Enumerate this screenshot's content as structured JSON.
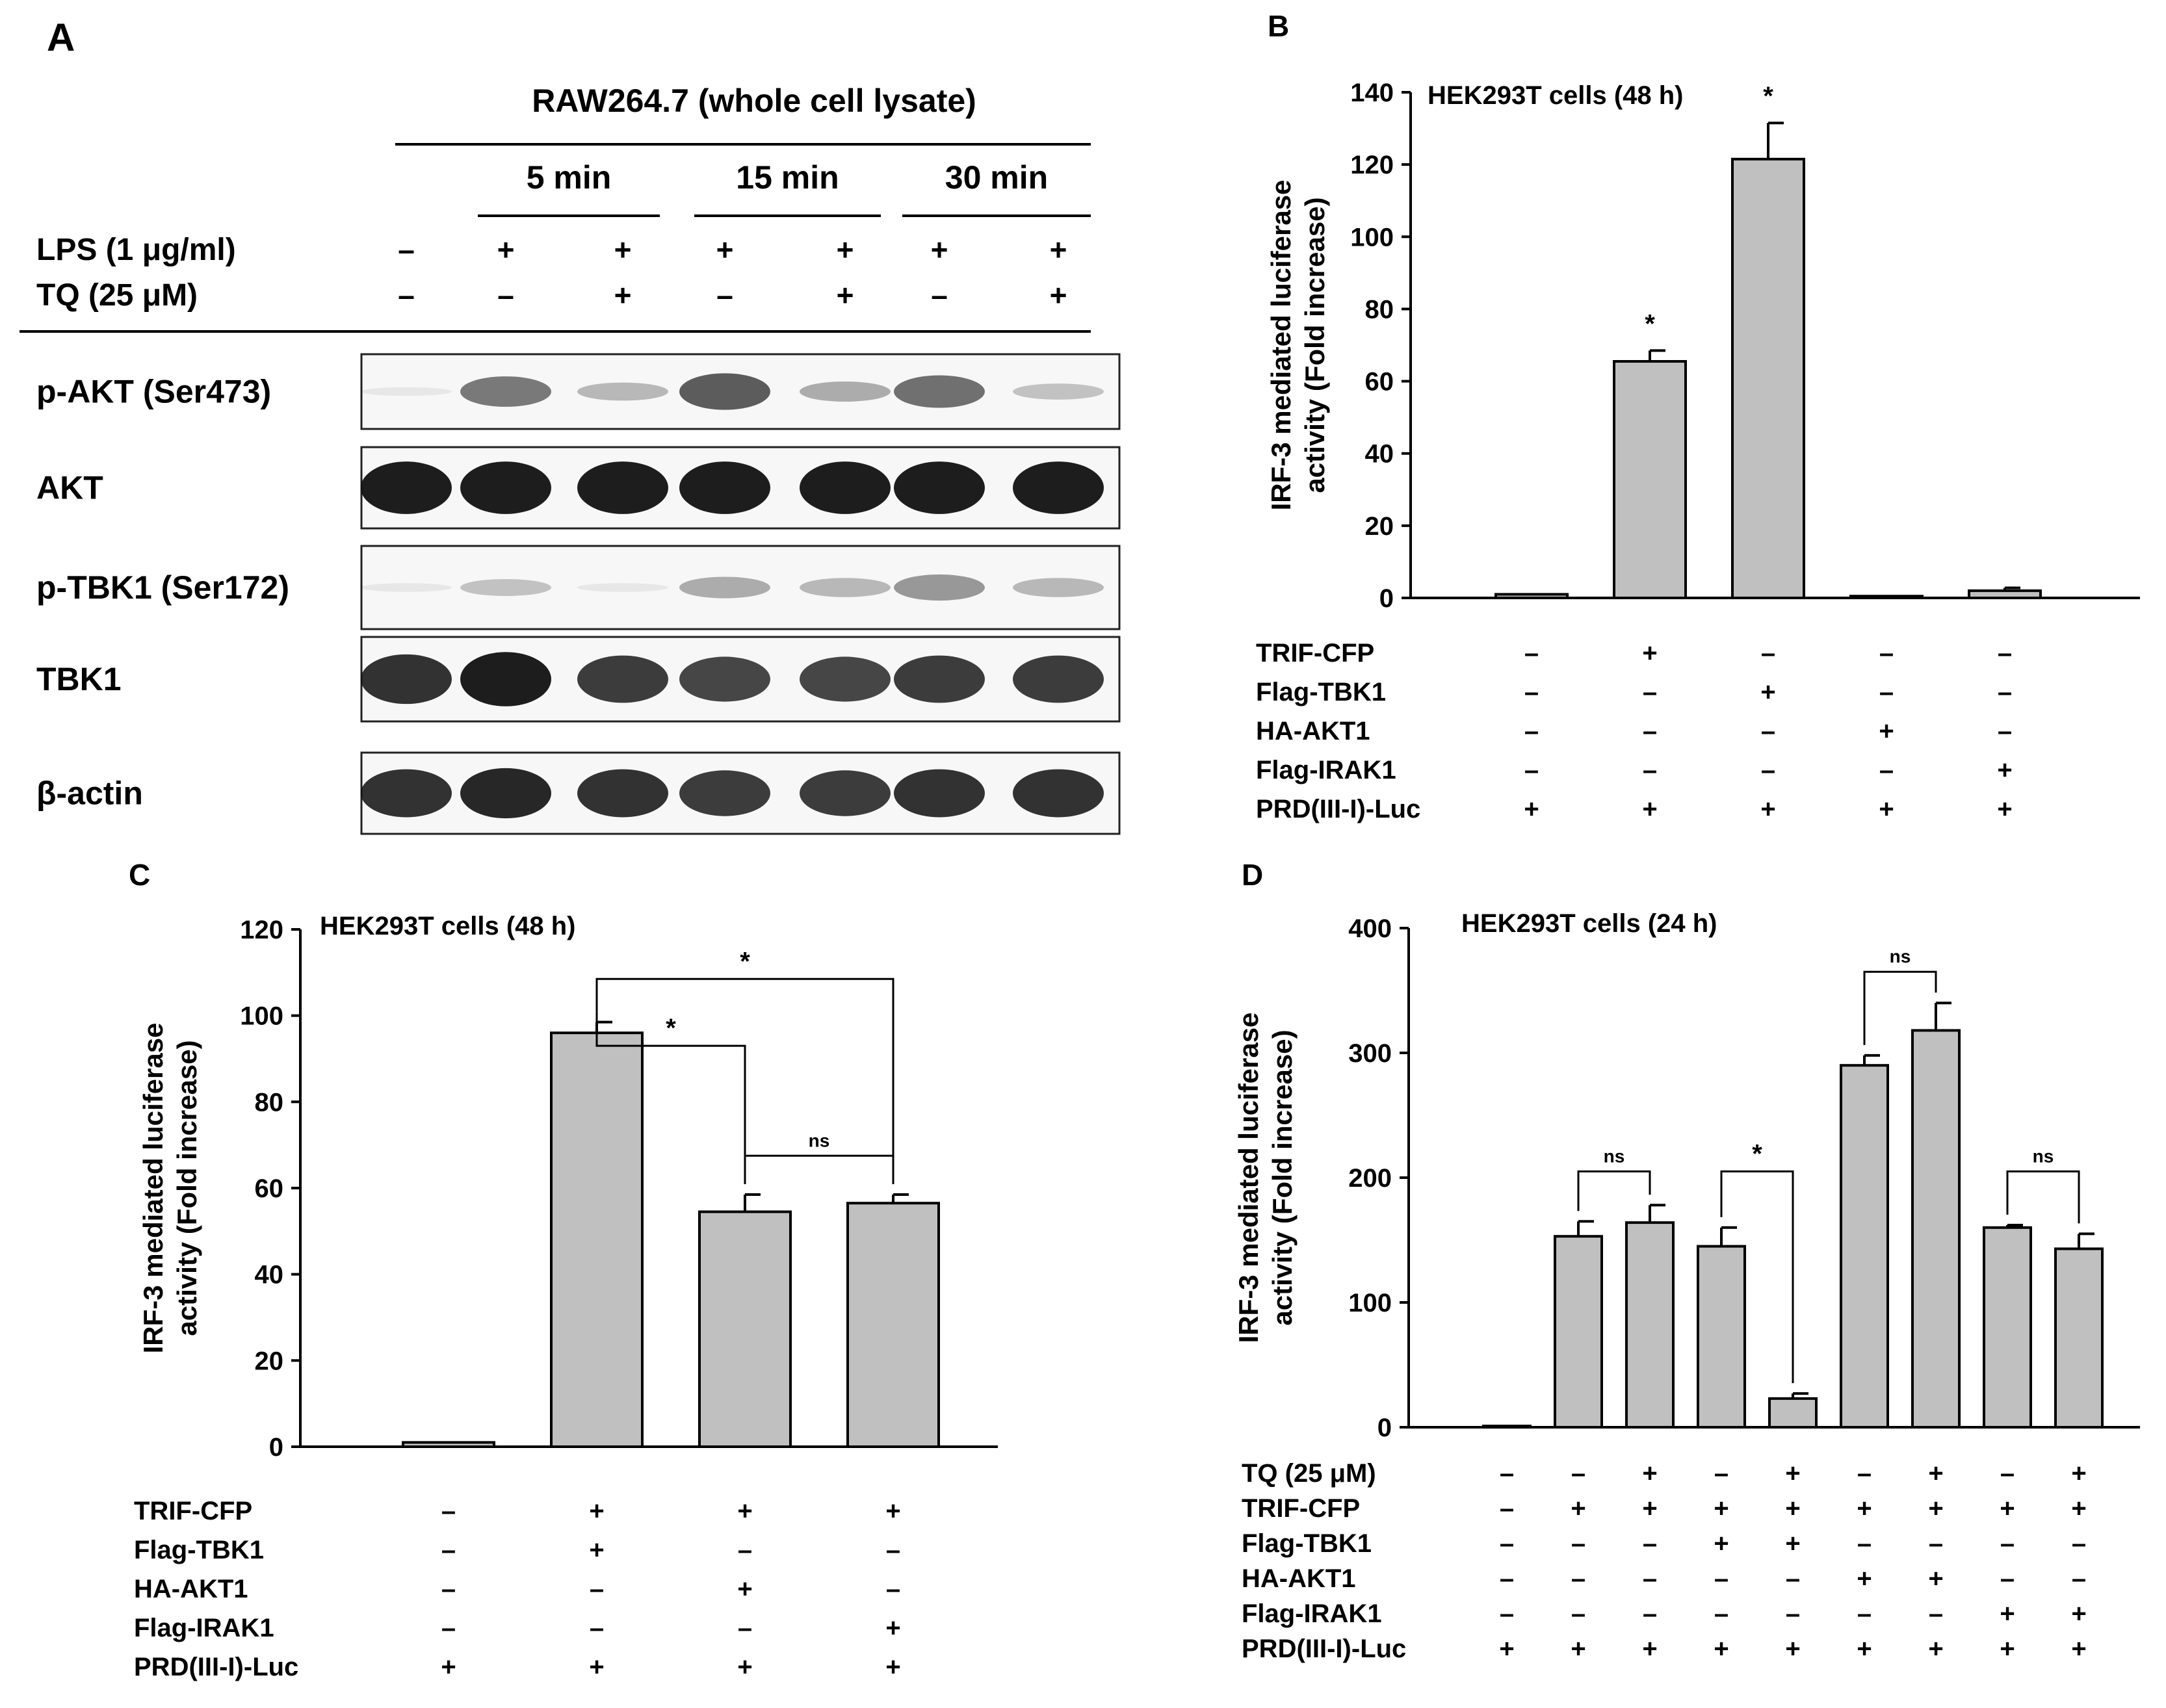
{
  "panel_labels": {
    "A": "A",
    "B": "B",
    "C": "C",
    "D": "D"
  },
  "colors": {
    "bar_fill": "#c0c0c0",
    "axis": "#000000",
    "band": "#111111",
    "blot_bg": "#f7f7f7"
  },
  "western_blot": {
    "title": "RAW264.7 (whole cell lysate)",
    "time_groups": [
      "5 min",
      "15 min",
      "30 min"
    ],
    "treatment_rows": [
      {
        "label": "LPS (1 μg/ml)",
        "signs": [
          "–",
          "+",
          "+",
          "+",
          "+",
          "+",
          "+"
        ]
      },
      {
        "label": "TQ (25 μM)",
        "signs": [
          "–",
          "–",
          "+",
          "–",
          "+",
          "–",
          "+"
        ]
      }
    ],
    "blots": [
      {
        "label": "p-AKT (Ser473)",
        "intensity": [
          0.02,
          0.55,
          0.25,
          0.7,
          0.3,
          0.6,
          0.2
        ]
      },
      {
        "label": "AKT",
        "intensity": [
          1,
          1,
          1,
          1,
          1,
          1,
          1
        ]
      },
      {
        "label": "p-TBK1 (Ser172)",
        "intensity": [
          0.02,
          0.2,
          0.02,
          0.3,
          0.25,
          0.4,
          0.25
        ]
      },
      {
        "label": "TBK1",
        "intensity": [
          0.9,
          1,
          0.85,
          0.8,
          0.8,
          0.85,
          0.85
        ]
      },
      {
        "label": "β-actin",
        "intensity": [
          0.9,
          0.95,
          0.9,
          0.85,
          0.85,
          0.9,
          0.9
        ]
      }
    ]
  },
  "chart_data": [
    {
      "panel": "B",
      "type": "bar",
      "title": "HEK293T cells  (48 h)",
      "ylabel_lines": [
        "IRF-3 mediated luciferase",
        "activity (Fold increase)"
      ],
      "ylim": [
        0,
        140
      ],
      "yticks": [
        0,
        20,
        40,
        60,
        80,
        100,
        120,
        140
      ],
      "values": [
        1,
        65.5,
        121.5,
        0.5,
        2
      ],
      "errors": [
        0,
        3,
        10,
        0,
        0.8
      ],
      "significance": [
        "",
        "*",
        "*",
        "",
        ""
      ],
      "treatment_rows": [
        {
          "label": "TRIF-CFP",
          "signs": [
            "–",
            "+",
            "–",
            "–",
            "–"
          ]
        },
        {
          "label": "Flag-TBK1",
          "signs": [
            "–",
            "–",
            "+",
            "–",
            "–"
          ]
        },
        {
          "label": "HA-AKT1",
          "signs": [
            "–",
            "–",
            "–",
            "+",
            "–"
          ]
        },
        {
          "label": "Flag-IRAK1",
          "signs": [
            "–",
            "–",
            "–",
            "–",
            "+"
          ]
        },
        {
          "label": "PRD(III-I)-Luc",
          "signs": [
            "+",
            "+",
            "+",
            "+",
            "+"
          ]
        }
      ]
    },
    {
      "panel": "C",
      "type": "bar",
      "title": "HEK293T cells  (48 h)",
      "ylabel_lines": [
        "IRF-3 mediated luciferase",
        "activity (Fold increase)"
      ],
      "ylim": [
        0,
        120
      ],
      "yticks": [
        0,
        20,
        40,
        60,
        80,
        100,
        120
      ],
      "values": [
        1,
        96,
        54.5,
        56.5
      ],
      "errors": [
        0,
        2.5,
        4,
        2
      ],
      "brackets": [
        {
          "from": 1,
          "to": 2,
          "label": "*"
        },
        {
          "from": 1,
          "to": 3,
          "label": "*"
        },
        {
          "from": 2,
          "to": 3,
          "label": "ns"
        }
      ],
      "treatment_rows": [
        {
          "label": "TRIF-CFP",
          "signs": [
            "–",
            "+",
            "+",
            "+"
          ]
        },
        {
          "label": "Flag-TBK1",
          "signs": [
            "–",
            "+",
            "–",
            "–"
          ]
        },
        {
          "label": "HA-AKT1",
          "signs": [
            "–",
            "–",
            "+",
            "–"
          ]
        },
        {
          "label": "Flag-IRAK1",
          "signs": [
            "–",
            "–",
            "–",
            "+"
          ]
        },
        {
          "label": "PRD(III-I)-Luc",
          "signs": [
            "+",
            "+",
            "+",
            "+"
          ]
        }
      ]
    },
    {
      "panel": "D",
      "type": "bar",
      "title": "HEK293T cells  (24 h)",
      "ylabel_lines": [
        "IRF-3 mediated luciferase",
        "activity (Fold increase)"
      ],
      "ylim": [
        0,
        400
      ],
      "yticks": [
        0,
        100,
        200,
        300,
        400
      ],
      "values": [
        1,
        153,
        164,
        145,
        23,
        290,
        318,
        160,
        143
      ],
      "errors": [
        0,
        12,
        14,
        15,
        4,
        8,
        22,
        2,
        12
      ],
      "brackets": [
        {
          "from": 1,
          "to": 2,
          "label": "ns"
        },
        {
          "from": 3,
          "to": 4,
          "label": "*"
        },
        {
          "from": 5,
          "to": 6,
          "label": "ns"
        },
        {
          "from": 7,
          "to": 8,
          "label": "ns"
        }
      ],
      "treatment_rows": [
        {
          "label": "TQ (25 μM)",
          "signs": [
            "–",
            "–",
            "+",
            "–",
            "+",
            "–",
            "+",
            "–",
            "+"
          ]
        },
        {
          "label": "TRIF-CFP",
          "signs": [
            "–",
            "+",
            "+",
            "+",
            "+",
            "+",
            "+",
            "+",
            "+"
          ]
        },
        {
          "label": "Flag-TBK1",
          "signs": [
            "–",
            "–",
            "–",
            "+",
            "+",
            "–",
            "–",
            "–",
            "–"
          ]
        },
        {
          "label": "HA-AKT1",
          "signs": [
            "–",
            "–",
            "–",
            "–",
            "–",
            "+",
            "+",
            "–",
            "–"
          ]
        },
        {
          "label": "Flag-IRAK1",
          "signs": [
            "–",
            "–",
            "–",
            "–",
            "–",
            "–",
            "–",
            "+",
            "+"
          ]
        },
        {
          "label": "PRD(III-I)-Luc",
          "signs": [
            "+",
            "+",
            "+",
            "+",
            "+",
            "+",
            "+",
            "+",
            "+"
          ]
        }
      ]
    }
  ]
}
